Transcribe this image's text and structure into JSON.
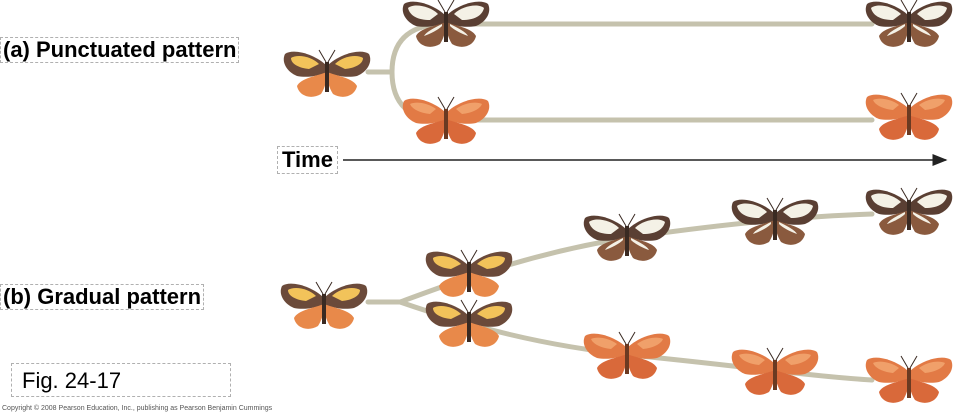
{
  "labels": {
    "punctuated": "(a) Punctuated pattern",
    "gradual": "(b) Gradual pattern",
    "time": "Time",
    "figure": "Fig. 24-17",
    "copyright": "Copyright © 2008 Pearson Education, Inc., publishing as Pearson Benjamin Cummings"
  },
  "colors": {
    "branch": "#c5c2ad",
    "arrow": "#222222",
    "wing_brown": "#6b4a3a",
    "wing_orange": "#e8894a",
    "wing_yellow": "#f2c35a",
    "wing_white": "#f4f1e6",
    "body": "#3a2a22"
  }
}
